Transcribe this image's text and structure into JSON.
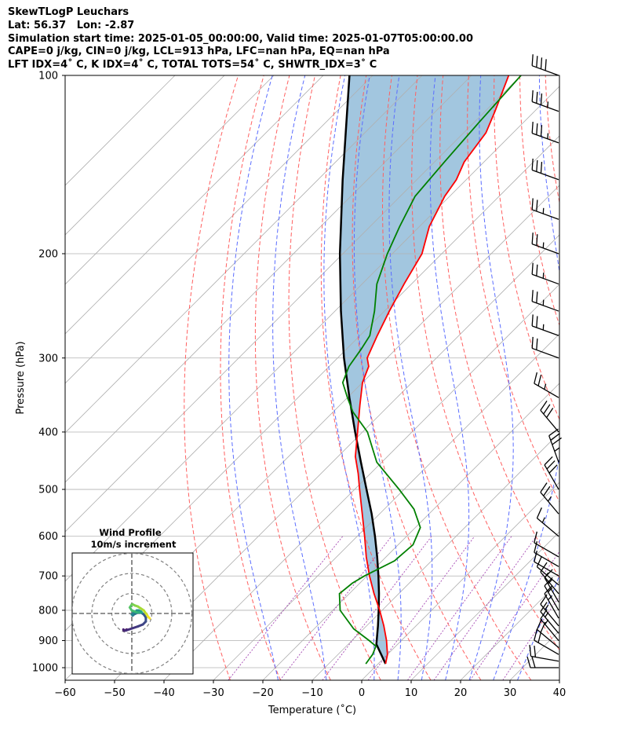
{
  "header": {
    "line1": "SkewTLogP Leuchars",
    "line2": "Lat: 56.37   Lon: -2.87",
    "line3": "Simulation start time: 2025-01-05_00:00:00, Valid time: 2025-01-07T05:00:00.00",
    "line4": "CAPE=0 j/kg, CIN=0 j/kg, LCL=913 hPa, LFC=nan hPa, EQ=nan hPa",
    "line5": "LFT IDX=4˚ C, K IDX=4˚ C, TOTAL TOTS=54˚ C, SHWTR_IDX=3˚ C"
  },
  "chart_data": {
    "type": "skewt-logp",
    "xlabel": "Temperature (˚C)",
    "ylabel": "Pressure (hPa)",
    "xlim": [
      -60,
      40
    ],
    "ylim": [
      1050,
      100
    ],
    "x_scale": "linear, skewed 45 degrees",
    "y_scale": "log",
    "xticks": [
      -60,
      -50,
      -40,
      -30,
      -20,
      -10,
      0,
      10,
      20,
      30,
      40
    ],
    "yticks": [
      1000,
      900,
      800,
      700,
      600,
      500,
      400,
      300,
      200,
      100
    ],
    "grid": true,
    "temperature": {
      "color": "#ff0000",
      "p": [
        985,
        950,
        900,
        850,
        800,
        750,
        700,
        650,
        600,
        550,
        500,
        470,
        440,
        400,
        360,
        330,
        310,
        300,
        275,
        250,
        225,
        200,
        180,
        160,
        150,
        140,
        125,
        115,
        100
      ],
      "t": [
        1.5,
        0.0,
        -3.0,
        -6.5,
        -10.5,
        -15.0,
        -19.5,
        -24.0,
        -28.5,
        -33.5,
        -39.0,
        -42.5,
        -46.5,
        -51.0,
        -56.0,
        -60.0,
        -62.0,
        -64.0,
        -66.5,
        -69.0,
        -71.5,
        -74.0,
        -78.0,
        -81.0,
        -82.0,
        -84.0,
        -85.5,
        -88.0,
        -92.5
      ]
    },
    "dewpoint": {
      "color": "#008000",
      "p": [
        985,
        950,
        920,
        900,
        860,
        800,
        750,
        720,
        700,
        660,
        620,
        580,
        540,
        500,
        450,
        400,
        370,
        350,
        330,
        310,
        290,
        275,
        250,
        225,
        200,
        180,
        160,
        140,
        120,
        100
      ],
      "td": [
        -2.5,
        -3.0,
        -4.0,
        -6.5,
        -12.0,
        -18.5,
        -22.0,
        -21.5,
        -20.5,
        -17.5,
        -17.0,
        -19.0,
        -24.0,
        -31.0,
        -41.0,
        -49.0,
        -56.0,
        -60.0,
        -64.0,
        -66.0,
        -67.0,
        -68.0,
        -72.0,
        -77.0,
        -81.0,
        -84.0,
        -87.0,
        -88.0,
        -89.0,
        -90.0
      ]
    },
    "parcel_profile": {
      "color": "#000000",
      "p": [
        985,
        913,
        850,
        800,
        750,
        700,
        650,
        600,
        550,
        500,
        450,
        400,
        350,
        300,
        250,
        200,
        150,
        100
      ],
      "t": [
        1.5,
        -4.3,
        -7.7,
        -10.7,
        -14.0,
        -17.7,
        -21.8,
        -26.4,
        -31.6,
        -37.6,
        -44.2,
        -51.5,
        -59.6,
        -68.7,
        -78.8,
        -90.6,
        -105.0,
        -124.7
      ]
    },
    "shaded_area": {
      "label": "area between parcel and temperature",
      "color": "#a2c6df"
    },
    "dry_adiabats_theta_C": [
      -30,
      -20,
      -10,
      0,
      10,
      20,
      30,
      40,
      50,
      60,
      70,
      80,
      90,
      100
    ],
    "moist_adiabats_T_C": [
      -20,
      -10,
      0,
      5,
      10,
      15,
      20,
      25,
      30
    ],
    "mixing_ratio_lines_g_per_kg": [
      0.4,
      1,
      2,
      4,
      7,
      10,
      16,
      24
    ],
    "wind_barbs": {
      "p": [
        1000,
        975,
        950,
        925,
        900,
        875,
        850,
        825,
        800,
        775,
        750,
        725,
        700,
        675,
        650,
        600,
        550,
        500,
        450,
        400,
        350,
        300,
        275,
        250,
        225,
        200,
        175,
        150,
        130,
        115,
        100
      ],
      "speed_kt": [
        20,
        20,
        20,
        20,
        15,
        15,
        15,
        15,
        15,
        15,
        15,
        10,
        10,
        10,
        10,
        15,
        25,
        30,
        35,
        30,
        25,
        20,
        25,
        25,
        25,
        25,
        25,
        30,
        35,
        35,
        40
      ],
      "dir_deg": [
        270,
        280,
        300,
        310,
        320,
        320,
        320,
        330,
        330,
        330,
        320,
        310,
        300,
        300,
        300,
        310,
        320,
        330,
        340,
        320,
        300,
        290,
        290,
        290,
        290,
        290,
        290,
        290,
        290,
        290,
        290
      ]
    },
    "wind_profile_inset": {
      "title": "Wind Profile",
      "subtitle": "10m/s increment",
      "rings_ms": [
        10,
        20,
        30
      ],
      "colormap": "viridis",
      "hodograph_u": [
        -2.5,
        -3.5,
        -4.0,
        -4.2,
        -4.0,
        -3.0,
        0.0,
        3.0,
        5.5,
        7.0,
        7.0,
        6.0,
        4.5,
        3.0,
        2.0,
        1.0,
        0.5,
        0.0,
        1.0,
        2.5,
        3.5,
        4.5,
        5.0,
        4.5,
        3.5,
        2.5,
        1.5,
        0.0,
        -1.0,
        0.0,
        0.5,
        1.5,
        3.0,
        4.5,
        6.0,
        7.0,
        7.5,
        8.0,
        8.5,
        9.0
      ],
      "hodograph_v": [
        -8.0,
        -8.5,
        -8.5,
        -8.0,
        -8.5,
        -8.5,
        -7.5,
        -6.5,
        -5.5,
        -4.0,
        -2.0,
        -0.5,
        0.5,
        0.5,
        0.0,
        -0.5,
        -1.0,
        -0.5,
        0.5,
        1.5,
        1.5,
        1.0,
        0.5,
        0.5,
        0.5,
        0.5,
        1.0,
        1.5,
        3.0,
        4.5,
        4.5,
        4.0,
        3.5,
        2.5,
        1.5,
        0.0,
        -0.5,
        -1.5,
        -2.0,
        -2.5
      ]
    }
  }
}
